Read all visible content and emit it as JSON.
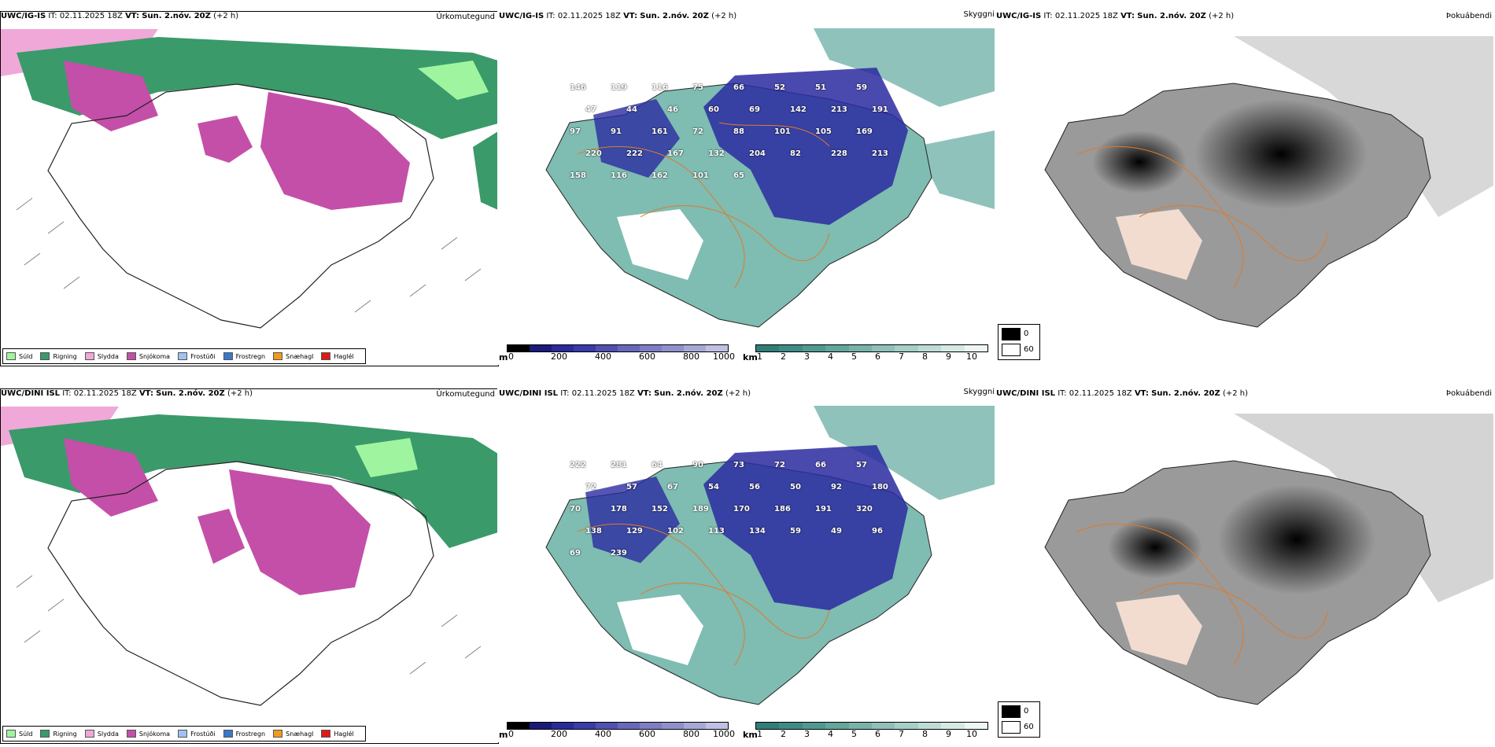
{
  "rows": [
    {
      "model": "UWC/IG-IS",
      "it_label": "IT:",
      "it_value": "02.11.2025 18Z",
      "vt_label": "VT:",
      "vt_value": "Sun. 2.nóv. 20Z",
      "lead": "(+2 h)"
    },
    {
      "model": "UWC/DINI ISL",
      "it_label": "IT:",
      "it_value": "02.11.2025 18Z",
      "vt_label": "VT:",
      "vt_value": "Sun. 2.nóv. 20Z",
      "lead": "(+2 h)"
    }
  ],
  "panel_titles": {
    "precip": "Úrkomutegund",
    "visibility": "Skyggni",
    "fog": "Þokuábendi"
  },
  "precip_legend": [
    {
      "label": "Súld",
      "color": "#9ff59f"
    },
    {
      "label": "Rigning",
      "color": "#3a9a6a"
    },
    {
      "label": "Slydda",
      "color": "#f0a8d8"
    },
    {
      "label": "Snjókoma",
      "color": "#c44fa8"
    },
    {
      "label": "Frostúði",
      "color": "#9ec3f0"
    },
    {
      "label": "Frostregn",
      "color": "#3a78c8"
    },
    {
      "label": "Snæhagl",
      "color": "#f09a20"
    },
    {
      "label": "Haglél",
      "color": "#e01818"
    }
  ],
  "ceiling_bar": {
    "unit": "m",
    "ticks": [
      "0",
      "200",
      "400",
      "600",
      "800",
      "1000"
    ],
    "colors": [
      "#000000",
      "#1a1a7a",
      "#2a2a9a",
      "#3a3aa8",
      "#5050b0",
      "#6868b8",
      "#7e7ec4",
      "#9090cc",
      "#a8a8d8",
      "#c0c0e4"
    ]
  },
  "vis_bar": {
    "unit": "km",
    "ticks": [
      "1",
      "2",
      "3",
      "4",
      "5",
      "6",
      "7",
      "8",
      "9",
      "10"
    ],
    "colors": [
      "#2f7f78",
      "#3f8c85",
      "#4f9990",
      "#62a69c",
      "#78b3aa",
      "#8fc1b8",
      "#a6cfc7",
      "#bedcd6",
      "#d6eae5",
      "#eef6f4"
    ]
  },
  "fog_legend": {
    "high": "0",
    "low": "60"
  },
  "ceiling_labels_top": [
    "146",
    "119",
    "116",
    "75",
    "66",
    "52",
    "51",
    "59",
    "47",
    "44",
    "46",
    "60",
    "69",
    "142",
    "213",
    "191",
    "97",
    "91",
    "161",
    "72",
    "88",
    "101",
    "105",
    "169",
    "220",
    "222",
    "167",
    "132",
    "204",
    "82",
    "228",
    "213",
    "158",
    "116",
    "162",
    "101",
    "65"
  ],
  "ceiling_labels_bottom": [
    "222",
    "281",
    "64",
    "90",
    "73",
    "72",
    "66",
    "57",
    "72",
    "57",
    "67",
    "54",
    "56",
    "50",
    "92",
    "180",
    "70",
    "178",
    "152",
    "189",
    "170",
    "186",
    "191",
    "320",
    "138",
    "129",
    "102",
    "113",
    "134",
    "59",
    "49",
    "96",
    "69",
    "239"
  ],
  "colors": {
    "snow": "#c44fa8",
    "rain": "#3a9a6a",
    "drizzle": "#9ff59f",
    "sleet": "#f0a8d8",
    "sea_vis": "#5fa89e",
    "ceiling": "#2a2aa0",
    "coast": "#222222",
    "contour": "#e07a2a"
  }
}
